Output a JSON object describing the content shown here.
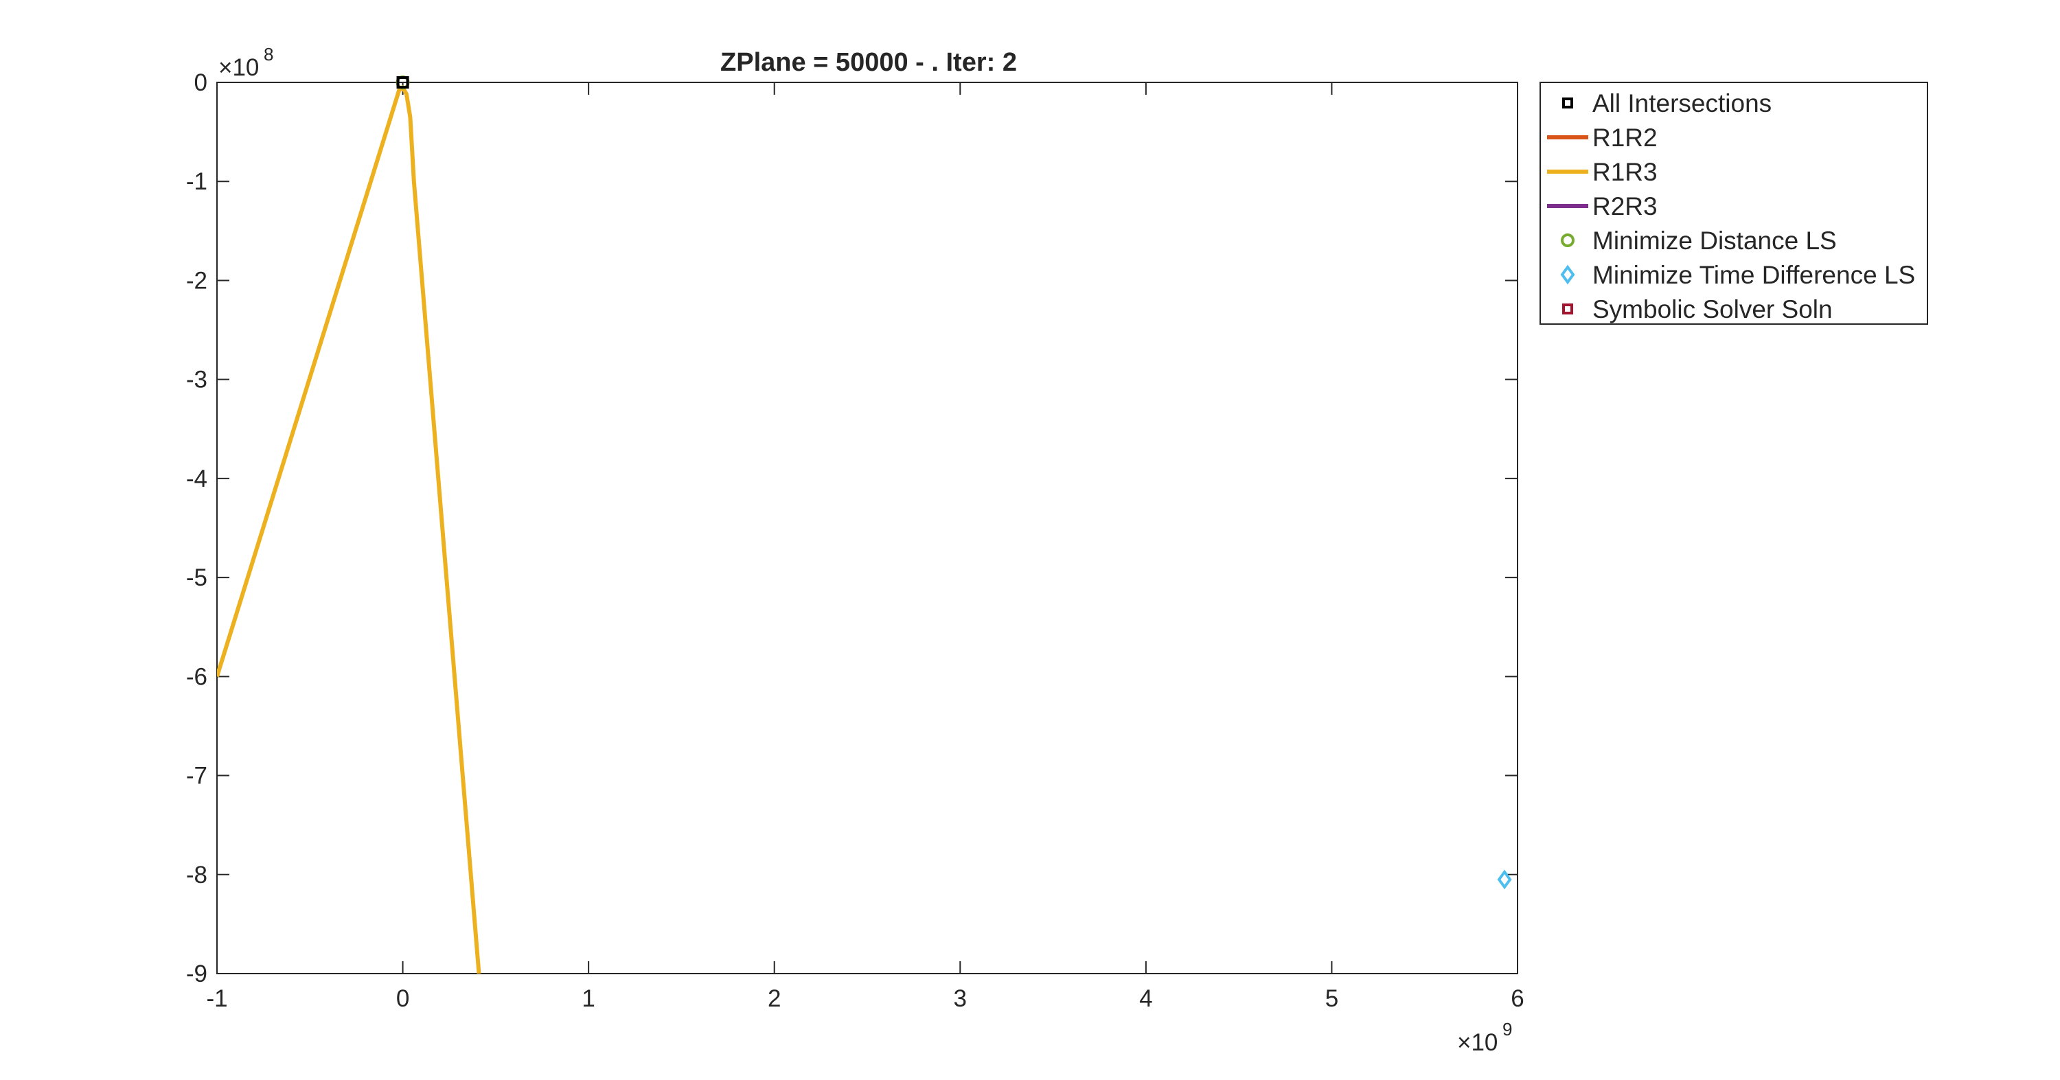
{
  "chart_data": {
    "type": "line",
    "title": "ZPlane = 50000 - . Iter: 2",
    "xlabel": "",
    "ylabel": "",
    "xlim": [
      -1,
      6
    ],
    "ylim": [
      -9,
      0
    ],
    "x_multiplier": "×10",
    "x_exponent": "9",
    "y_multiplier": "×10",
    "y_exponent": "8",
    "x_ticks": [
      -1,
      0,
      1,
      2,
      3,
      4,
      5,
      6
    ],
    "x_tick_labels": [
      "-1",
      "0",
      "1",
      "2",
      "3",
      "4",
      "5",
      "6"
    ],
    "y_ticks": [
      0,
      -1,
      -2,
      -3,
      -4,
      -5,
      -6,
      -7,
      -8,
      -9
    ],
    "y_tick_labels": [
      "0",
      "-1",
      "-2",
      "-3",
      "-4",
      "-5",
      "-6",
      "-7",
      "-8",
      "-9"
    ],
    "grid": false,
    "legend_position": "outside-right-top",
    "series": [
      {
        "name": "All Intersections",
        "kind": "marker",
        "marker": "square",
        "color": "#000000",
        "points": [
          [
            0.0,
            0.0
          ]
        ]
      },
      {
        "name": "R1R2",
        "kind": "line",
        "color": "#D95319",
        "points": []
      },
      {
        "name": "R1R3",
        "kind": "line",
        "color": "#EDB120",
        "points": [
          [
            -1.0,
            -6.0
          ],
          [
            -0.02,
            -0.08
          ],
          [
            0.0,
            -0.05
          ],
          [
            0.02,
            -0.12
          ],
          [
            0.04,
            -0.35
          ],
          [
            0.06,
            -1.0
          ],
          [
            0.41,
            -9.0
          ]
        ]
      },
      {
        "name": "R2R3",
        "kind": "line",
        "color": "#7E2F8E",
        "points": []
      },
      {
        "name": "Minimize Distance LS",
        "kind": "marker",
        "marker": "circle",
        "color": "#77AC30",
        "points": [
          [
            0.0,
            0.0
          ]
        ]
      },
      {
        "name": "Minimize Time Difference LS",
        "kind": "marker",
        "marker": "diamond",
        "color": "#4DBEEE",
        "points": [
          [
            5.93,
            -8.05
          ]
        ]
      },
      {
        "name": "Symbolic Solver Soln",
        "kind": "marker",
        "marker": "square",
        "color": "#A2142F",
        "points": [
          [
            0.0,
            0.0
          ]
        ]
      }
    ]
  }
}
